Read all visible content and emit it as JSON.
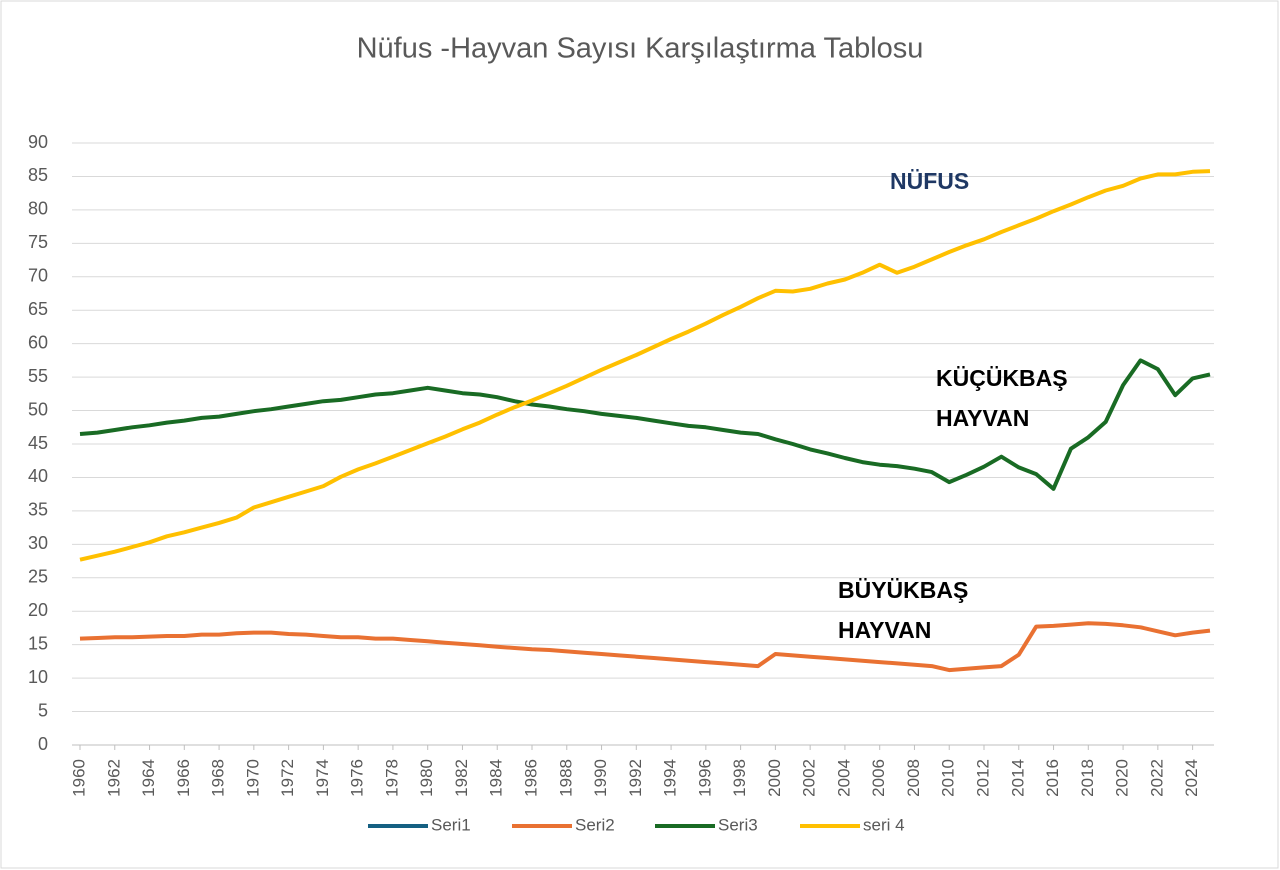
{
  "chart_data": {
    "type": "line",
    "title": "Nüfus -Hayvan Sayısı  Karşılaştırma Tablosu",
    "x": [
      1960,
      1961,
      1962,
      1963,
      1964,
      1965,
      1966,
      1967,
      1968,
      1969,
      1970,
      1971,
      1972,
      1973,
      1974,
      1975,
      1976,
      1977,
      1978,
      1979,
      1980,
      1981,
      1982,
      1983,
      1984,
      1985,
      1986,
      1987,
      1988,
      1989,
      1990,
      1991,
      1992,
      1993,
      1994,
      1995,
      1996,
      1997,
      1998,
      1999,
      2000,
      2001,
      2002,
      2003,
      2004,
      2005,
      2006,
      2007,
      2008,
      2009,
      2010,
      2011,
      2012,
      2013,
      2014,
      2015,
      2016,
      2017,
      2018,
      2019,
      2020,
      2021,
      2022,
      2023,
      2024,
      2025
    ],
    "xlim": [
      1960,
      2025
    ],
    "xticks": [
      1960,
      1962,
      1964,
      1966,
      1968,
      1970,
      1972,
      1974,
      1976,
      1978,
      1980,
      1982,
      1984,
      1986,
      1988,
      1990,
      1992,
      1994,
      1996,
      1998,
      2000,
      2002,
      2004,
      2006,
      2008,
      2010,
      2012,
      2014,
      2016,
      2018,
      2020,
      2022,
      2024
    ],
    "ylim": [
      0,
      90
    ],
    "yticks": [
      0,
      5,
      10,
      15,
      20,
      25,
      30,
      35,
      40,
      45,
      50,
      55,
      60,
      65,
      70,
      75,
      80,
      85,
      90
    ],
    "grid": true,
    "legend": "bottom",
    "series": [
      {
        "name": "Seri1",
        "color": "#156082",
        "values": [
          null,
          null,
          null,
          null,
          null,
          null,
          null,
          null,
          null,
          null,
          null,
          null,
          null,
          null,
          null,
          null,
          null,
          null,
          null,
          null,
          null,
          null,
          null,
          null,
          null,
          null,
          null,
          null,
          null,
          null,
          null,
          null,
          null,
          null,
          null,
          null,
          null,
          null,
          null,
          null,
          null,
          null,
          null,
          null,
          null,
          null,
          null,
          null,
          null,
          null,
          null,
          null,
          null,
          null,
          null,
          null,
          null,
          null,
          null,
          null,
          null,
          null,
          null,
          null,
          null,
          null
        ]
      },
      {
        "name": "Seri2",
        "color": "#e97132",
        "values": [
          15.9,
          16.0,
          16.1,
          16.1,
          16.2,
          16.3,
          16.3,
          16.5,
          16.5,
          16.7,
          16.8,
          16.8,
          16.6,
          16.5,
          16.3,
          16.1,
          16.1,
          15.9,
          15.9,
          15.7,
          15.5,
          15.3,
          15.1,
          14.9,
          14.7,
          14.5,
          14.3,
          14.2,
          14.0,
          13.8,
          13.6,
          13.4,
          13.2,
          13.0,
          12.8,
          12.6,
          12.4,
          12.2,
          12.0,
          11.8,
          13.6,
          13.4,
          13.2,
          13.0,
          12.8,
          12.6,
          12.4,
          12.2,
          12.0,
          11.8,
          11.2,
          11.4,
          11.6,
          11.8,
          13.5,
          17.7,
          17.8,
          18.0,
          18.2,
          18.1,
          17.9,
          17.6,
          17.0,
          16.4,
          16.8,
          17.1
        ]
      },
      {
        "name": "Seri3",
        "color": "#196b24",
        "values": [
          46.5,
          46.7,
          47.1,
          47.5,
          47.8,
          48.2,
          48.5,
          48.9,
          49.1,
          49.5,
          49.9,
          50.2,
          50.6,
          51.0,
          51.4,
          51.6,
          52.0,
          52.4,
          52.6,
          53.0,
          53.4,
          53.0,
          52.6,
          52.4,
          52.0,
          51.4,
          50.9,
          50.6,
          50.2,
          49.9,
          49.5,
          49.2,
          48.9,
          48.5,
          48.1,
          47.7,
          47.5,
          47.1,
          46.7,
          46.5,
          45.7,
          45.0,
          44.2,
          43.6,
          42.9,
          42.3,
          41.9,
          41.7,
          41.3,
          40.8,
          39.3,
          40.4,
          41.6,
          43.1,
          41.5,
          40.5,
          38.3,
          44.3,
          46.0,
          48.3,
          53.8,
          57.5,
          56.2,
          52.3,
          54.8,
          55.4
        ]
      },
      {
        "name": "seri 4",
        "color": "#ffc000",
        "values": [
          27.7,
          28.3,
          28.9,
          29.6,
          30.3,
          31.2,
          31.8,
          32.5,
          33.2,
          34.0,
          35.5,
          36.3,
          37.1,
          37.9,
          38.7,
          40.1,
          41.2,
          42.1,
          43.1,
          44.1,
          45.1,
          46.1,
          47.2,
          48.2,
          49.4,
          50.5,
          51.5,
          52.6,
          53.7,
          54.9,
          56.1,
          57.2,
          58.3,
          59.5,
          60.7,
          61.8,
          63.0,
          64.3,
          65.5,
          66.8,
          67.9,
          67.8,
          68.2,
          69.0,
          69.6,
          70.6,
          71.8,
          70.6,
          71.5,
          72.6,
          73.7,
          74.7,
          75.6,
          76.7,
          77.7,
          78.7,
          79.8,
          80.8,
          81.9,
          82.9,
          83.6,
          84.7,
          85.3,
          85.3,
          85.7,
          85.8
        ]
      }
    ],
    "annotations": [
      {
        "lines": [
          "NÜFUS"
        ],
        "color": "#1f3864"
      },
      {
        "lines": [
          "KÜÇÜKBAŞ",
          "HAYVAN"
        ],
        "color": "#000000"
      },
      {
        "lines": [
          "BÜYÜKBAŞ",
          "HAYVAN"
        ],
        "color": "#000000"
      }
    ]
  }
}
